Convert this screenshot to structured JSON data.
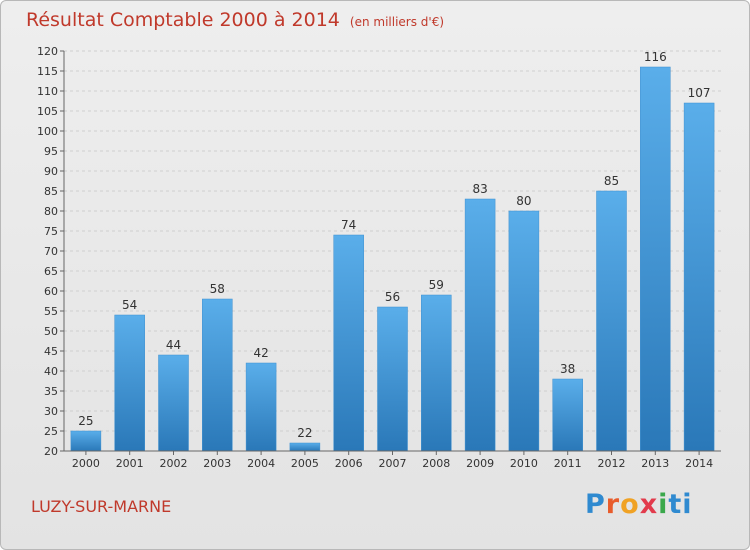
{
  "chart_data": {
    "type": "bar",
    "title": "Résultat Comptable 2000 à 2014",
    "subtitle": "(en milliers d'€)",
    "categories": [
      "2000",
      "2001",
      "2002",
      "2003",
      "2004",
      "2005",
      "2006",
      "2007",
      "2008",
      "2009",
      "2010",
      "2011",
      "2012",
      "2013",
      "2014"
    ],
    "values": [
      25,
      54,
      44,
      58,
      42,
      22,
      74,
      56,
      59,
      83,
      80,
      38,
      85,
      116,
      107
    ],
    "ylim": [
      20,
      120
    ],
    "ytick_step": 5,
    "grid": true,
    "bar_color": "#4a9ee0",
    "bar_color_dark": "#2a78b8",
    "xlabel": "",
    "ylabel": ""
  },
  "footer": {
    "commune": "LUZY-SUR-MARNE",
    "logo_letters": [
      "P",
      "r",
      "o",
      "x",
      "i",
      "ti"
    ]
  }
}
